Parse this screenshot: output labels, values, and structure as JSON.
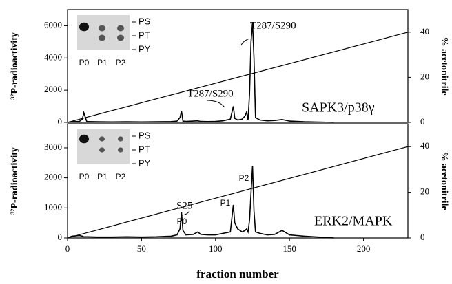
{
  "chart_data": [
    {
      "type": "line",
      "y_label": "³²P-radioactivity",
      "y2_label": "% acetonitrile",
      "inset": {
        "lanes": [
          "P0",
          "P1",
          "P2"
        ],
        "bands": [
          "PS",
          "PT",
          "PY"
        ]
      },
      "annotations": [
        {
          "text": "T287/S290"
        },
        {
          "text": "T287/S290"
        },
        {
          "text": "SAPK3/p38γ"
        }
      ],
      "x": [
        0,
        3,
        8,
        10,
        11,
        13,
        20,
        30,
        40,
        50,
        60,
        70,
        74,
        76,
        77,
        78,
        80,
        85,
        88,
        90,
        95,
        100,
        105,
        110,
        112,
        113,
        115,
        118,
        120,
        121,
        122,
        123,
        124,
        125,
        126,
        127,
        130,
        135,
        140,
        145,
        150,
        155,
        160,
        180
      ],
      "series": [
        {
          "color": "#000000",
          "values": [
            0,
            40,
            60,
            200,
            600,
            50,
            40,
            30,
            40,
            30,
            40,
            50,
            80,
            300,
            700,
            80,
            60,
            80,
            100,
            60,
            50,
            60,
            100,
            200,
            1000,
            250,
            150,
            200,
            400,
            650,
            150,
            1800,
            5000,
            6200,
            4000,
            300,
            150,
            100,
            120,
            180,
            80,
            60,
            40,
            0
          ]
        },
        {
          "color": "#000000",
          "axis": "y2",
          "x": [
            0,
            230
          ],
          "values": [
            0,
            40
          ]
        }
      ],
      "xlim": [
        0,
        230
      ],
      "ylim": [
        0,
        7000
      ],
      "yticks": [
        0,
        2000,
        4000,
        6000
      ],
      "y2lim": [
        0,
        50
      ],
      "y2ticks": [
        0,
        20,
        40
      ]
    },
    {
      "type": "line",
      "y_label": "³²P-radioactivity",
      "y2_label": "% acetonitrile",
      "x_label": "fraction number",
      "inset": {
        "lanes": [
          "P0",
          "P1",
          "P2"
        ],
        "bands": [
          "PS",
          "PT",
          "PY"
        ]
      },
      "annotations": [
        {
          "text": "S25"
        },
        {
          "text": "P0"
        },
        {
          "text": "P1"
        },
        {
          "text": "P2"
        },
        {
          "text": "ERK2/MAPK"
        }
      ],
      "x": [
        0,
        3,
        8,
        10,
        11,
        13,
        20,
        30,
        40,
        50,
        60,
        70,
        74,
        76,
        77,
        78,
        80,
        85,
        88,
        90,
        95,
        100,
        105,
        110,
        112,
        113,
        115,
        118,
        120,
        121,
        122,
        123,
        124,
        125,
        126,
        127,
        130,
        135,
        140,
        145,
        150,
        155,
        160,
        180
      ],
      "series": [
        {
          "color": "#000000",
          "values": [
            0,
            60,
            80,
            60,
            40,
            40,
            30,
            30,
            40,
            30,
            40,
            60,
            100,
            300,
            850,
            250,
            100,
            120,
            200,
            120,
            100,
            100,
            150,
            200,
            1100,
            500,
            300,
            200,
            250,
            300,
            200,
            600,
            1500,
            2400,
            900,
            200,
            150,
            100,
            120,
            250,
            100,
            80,
            60,
            0
          ]
        },
        {
          "color": "#000000",
          "axis": "y2",
          "x": [
            0,
            230
          ],
          "values": [
            0,
            40
          ]
        }
      ],
      "xlim": [
        0,
        230
      ],
      "xticks": [
        0,
        50,
        100,
        150,
        200
      ],
      "ylim": [
        0,
        3800
      ],
      "yticks": [
        0,
        1000,
        2000,
        3000
      ],
      "y2lim": [
        0,
        50
      ],
      "y2ticks": [
        0,
        20,
        40
      ]
    }
  ]
}
